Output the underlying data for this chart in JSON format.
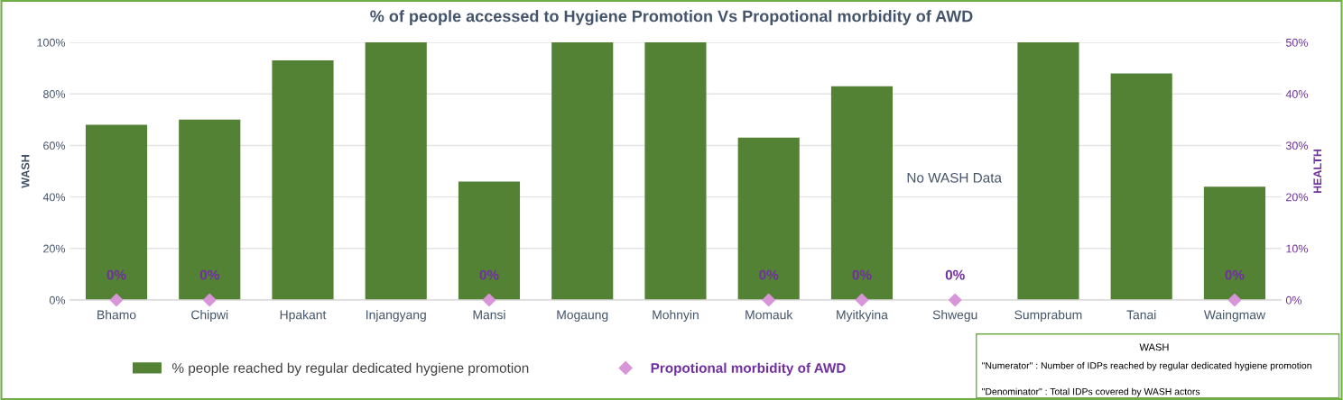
{
  "chart_data": {
    "type": "bar",
    "title": "% of people accessed to Hygiene Promotion Vs Propotional morbidity of AWD",
    "categories": [
      "Bhamo",
      "Chipwi",
      "Hpakant",
      "Injangyang",
      "Mansi",
      "Mogaung",
      "Mohnyin",
      "Momauk",
      "Myitkyina",
      "Shwegu",
      "Sumprabum",
      "Tanai",
      "Waingmaw"
    ],
    "series": [
      {
        "name": "% people reached by regular dedicated hygiene promotion",
        "color": "#548235",
        "values": [
          68,
          70,
          93,
          100,
          46,
          100,
          100,
          63,
          83,
          null,
          100,
          88,
          44
        ]
      },
      {
        "name": "Propotional morbidity of AWD",
        "type": "scatter",
        "axis": "y2",
        "color": "#d895d8",
        "marker": "diamond",
        "values": [
          0,
          0,
          null,
          null,
          0,
          null,
          null,
          0,
          0,
          0,
          null,
          null,
          0
        ],
        "value_labels": [
          "0%",
          "0%",
          null,
          null,
          "0%",
          null,
          null,
          "0%",
          "0%",
          "0%",
          null,
          null,
          "0%"
        ]
      }
    ],
    "ylabel": "WASH",
    "y2label": "HEALTH",
    "ylim": [
      0,
      100
    ],
    "yticks": [
      {
        "value": 0,
        "label": "0%"
      },
      {
        "value": 20,
        "label": "20%"
      },
      {
        "value": 40,
        "label": "40%"
      },
      {
        "value": 60,
        "label": "60%"
      },
      {
        "value": 80,
        "label": "80%"
      },
      {
        "value": 100,
        "label": "100%"
      }
    ],
    "y2lim": [
      0,
      50
    ],
    "y2ticks": [
      {
        "value": 0,
        "label": "0%"
      },
      {
        "value": 10,
        "label": "10%"
      },
      {
        "value": 20,
        "label": "20%"
      },
      {
        "value": 30,
        "label": "30%"
      },
      {
        "value": 40,
        "label": "40%"
      },
      {
        "value": 50,
        "label": "50%"
      }
    ],
    "grid": "y",
    "legend": "bottom",
    "annotations": [
      "No WASH Data",
      "WASH",
      "\"Numerator\" : Number of IDPs reached by regular dedicated hygiene promotion",
      "\"Denominator\" : Total IDPs covered by WASH actors"
    ]
  }
}
